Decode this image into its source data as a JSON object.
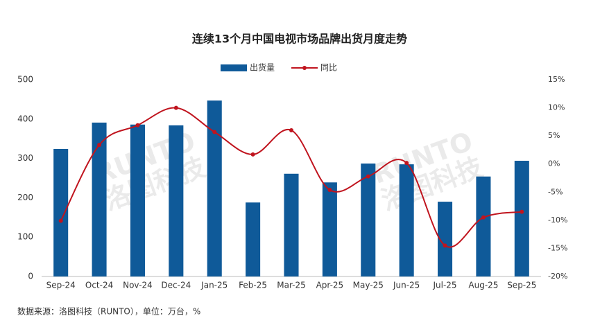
{
  "chart_data": {
    "type": "bar-line",
    "title": "连续13个月中国电视市场品牌出货月度走势",
    "categories": [
      "Sep-24",
      "Oct-24",
      "Nov-24",
      "Dec-24",
      "Jan-25",
      "Feb-25",
      "Mar-25",
      "Apr-25",
      "May-25",
      "Jun-25",
      "Jul-25",
      "Aug-25",
      "Sep-25"
    ],
    "series": [
      {
        "name": "出货量",
        "type": "bar",
        "color": "#0f5a99",
        "values": [
          324,
          391,
          386,
          384,
          447,
          188,
          261,
          239,
          287,
          285,
          190,
          254,
          294
        ]
      },
      {
        "name": "同比",
        "type": "line",
        "axis": "y2",
        "color": "#c0141e",
        "values": [
          -10.1,
          3.4,
          6.9,
          10.0,
          5.7,
          1.7,
          6.0,
          -4.6,
          -2.2,
          0.2,
          -14.5,
          -9.5,
          -8.5
        ]
      }
    ],
    "ylim": [
      0,
      500
    ],
    "yticks": [
      0,
      100,
      200,
      300,
      400,
      500
    ],
    "y2lim": [
      -20,
      15
    ],
    "y2ticks": [
      {
        "value": -20,
        "label": "-20%"
      },
      {
        "value": -15,
        "label": "-15%"
      },
      {
        "value": -10,
        "label": "-10%"
      },
      {
        "value": -5,
        "label": "-5%"
      },
      {
        "value": 0,
        "label": "0%"
      },
      {
        "value": 5,
        "label": "5%"
      },
      {
        "value": 10,
        "label": "10%"
      },
      {
        "value": 15,
        "label": "15%"
      }
    ],
    "legend": "top",
    "watermark": [
      "RUNTO",
      "洛图科技"
    ],
    "source": "数据来源：洛图科技（RUNTO），单位：万台，%"
  }
}
